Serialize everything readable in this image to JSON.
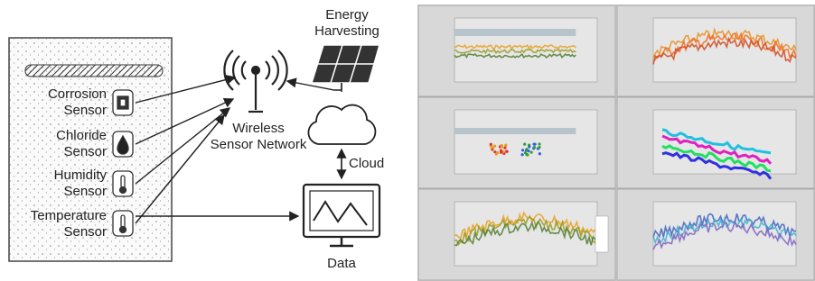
{
  "sensors": [
    {
      "lines": [
        "Corrosion",
        "Sensor"
      ]
    },
    {
      "lines": [
        "Chloride",
        "Sensor"
      ]
    },
    {
      "lines": [
        "Humidity",
        "Sensor"
      ]
    },
    {
      "lines": [
        "Temperature",
        "Sensor"
      ]
    }
  ],
  "network": {
    "lines": [
      "Wireless",
      "Sensor Network"
    ]
  },
  "energy": {
    "lines": [
      "Energy",
      "Harvesting"
    ]
  },
  "cloud": {
    "label": "Cloud"
  },
  "data": {
    "label": "Data"
  }
}
